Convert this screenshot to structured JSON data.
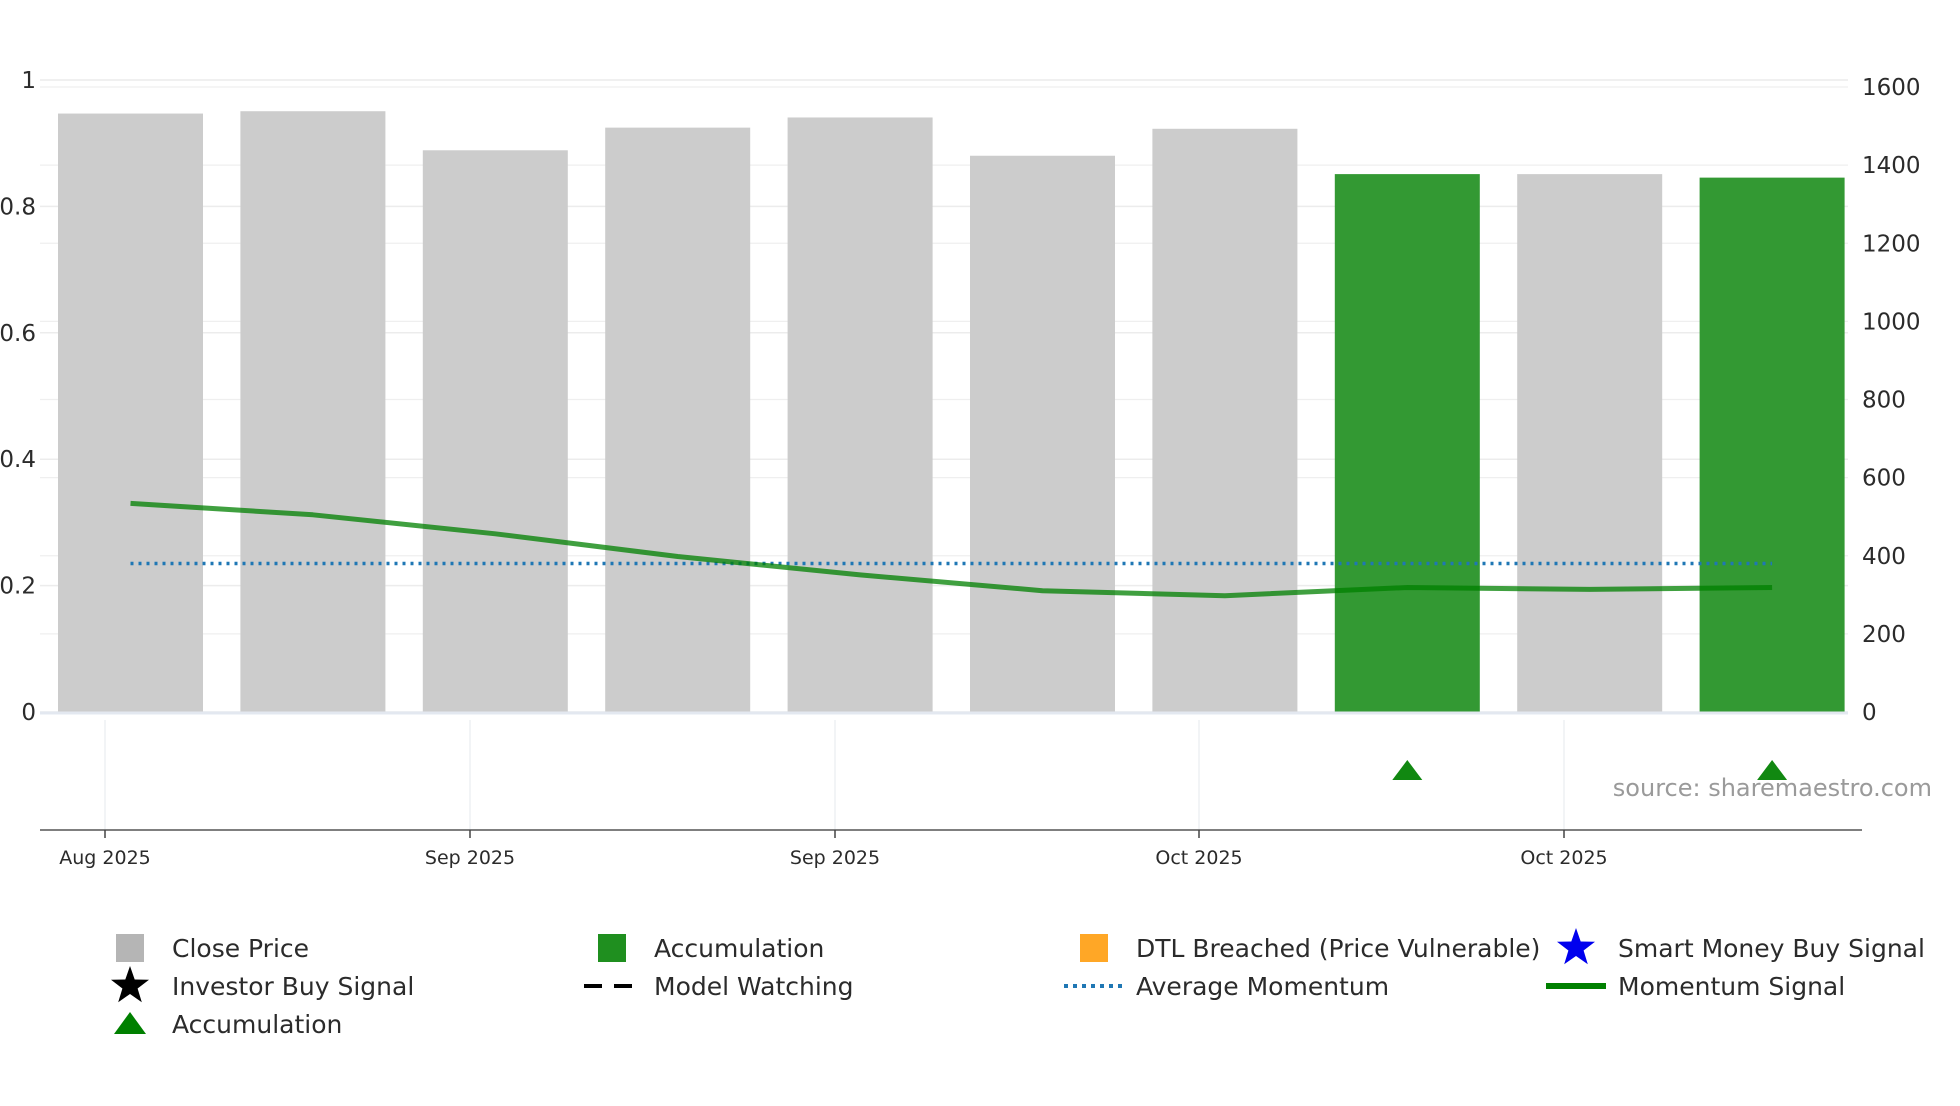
{
  "chart_data": {
    "type": "bar",
    "left_axis": {
      "ticks": [
        0,
        0.2,
        0.4,
        0.6,
        0.8,
        1
      ],
      "labels": [
        "0",
        "0.2",
        "0.4",
        "0.6",
        "0.8",
        "1"
      ],
      "range": [
        0,
        1
      ]
    },
    "right_axis": {
      "ticks": [
        0,
        200,
        400,
        600,
        800,
        1000,
        1200,
        1400,
        1600
      ],
      "labels": [
        "0",
        "200",
        "400",
        "600",
        "800",
        "1000",
        "1200",
        "1400",
        "1600"
      ],
      "range": [
        0,
        1600
      ]
    },
    "x_tick_labels": [
      "Aug 2025",
      "Sep 2025",
      "Sep 2025",
      "Oct 2025",
      "Oct 2025"
    ],
    "bars": [
      {
        "value": 1532,
        "category": "Close Price"
      },
      {
        "value": 1538,
        "category": "Close Price"
      },
      {
        "value": 1438,
        "category": "Close Price"
      },
      {
        "value": 1496,
        "category": "Close Price"
      },
      {
        "value": 1522,
        "category": "Close Price"
      },
      {
        "value": 1424,
        "category": "Close Price"
      },
      {
        "value": 1493,
        "category": "Close Price"
      },
      {
        "value": 1377,
        "category": "Accumulation"
      },
      {
        "value": 1377,
        "category": "Close Price"
      },
      {
        "value": 1368,
        "category": "Accumulation"
      }
    ],
    "momentum_signal": [
      0.33,
      0.312,
      0.282,
      0.246,
      0.217,
      0.192,
      0.184,
      0.197,
      0.194,
      0.197
    ],
    "average_momentum": 0.235,
    "accumulation_markers": [
      7,
      9
    ],
    "colors": {
      "close_price": "#cccccc",
      "accumulation": "#339933",
      "dtl_breached": "#ffa500",
      "smart_money": "#0000ee",
      "investor_buy": "#000000",
      "average_momentum": "#1f77b4",
      "momentum_signal": "#008000",
      "marker": "#118811"
    },
    "source": "source: sharemaestro.com",
    "legend": [
      {
        "label": "Close Price",
        "symbol": "square",
        "color": "#b5b5b5"
      },
      {
        "label": "Accumulation",
        "symbol": "square",
        "color": "#1f8f1f"
      },
      {
        "label": "DTL Breached (Price Vulnerable)",
        "symbol": "square",
        "color": "#ffa726"
      },
      {
        "label": "Smart Money Buy Signal",
        "symbol": "star",
        "color": "#0000ee"
      },
      {
        "label": "Investor Buy Signal",
        "symbol": "star",
        "color": "#000000"
      },
      {
        "label": "Model Watching",
        "symbol": "dash",
        "color": "#000000"
      },
      {
        "label": "Average Momentum",
        "symbol": "dot",
        "color": "#1f77b4"
      },
      {
        "label": "Momentum Signal",
        "symbol": "line",
        "color": "#008000"
      },
      {
        "label": "Accumulation",
        "symbol": "triangle",
        "color": "#008000"
      }
    ]
  }
}
